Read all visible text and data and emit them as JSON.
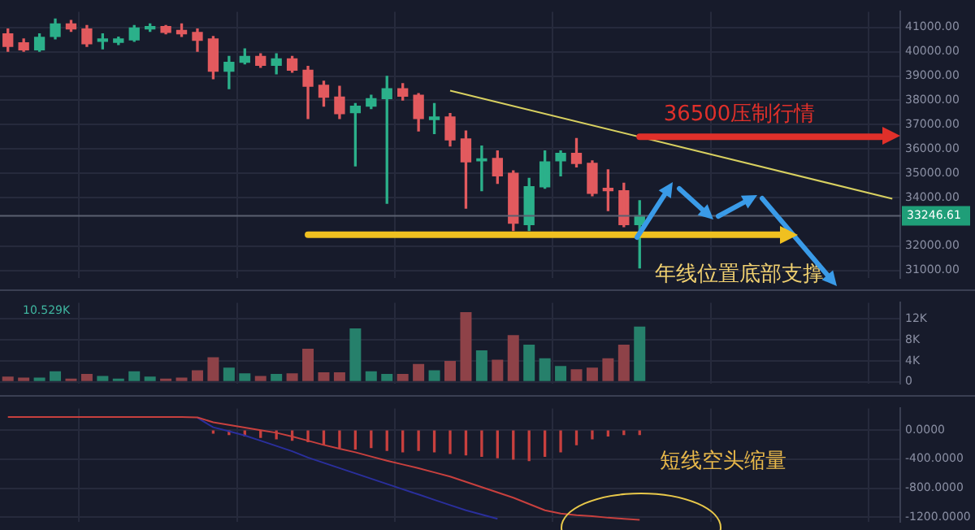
{
  "chart_data": [
    {
      "type": "candlestick",
      "categories": [
        null,
        null,
        null,
        null,
        null,
        null,
        null,
        null,
        null,
        null,
        null,
        null,
        null,
        null,
        null,
        null,
        null,
        null,
        null,
        null,
        null,
        null,
        null,
        null,
        null,
        null,
        null,
        null,
        null,
        null,
        null,
        null,
        null,
        null,
        null,
        null,
        null,
        null,
        null,
        null,
        null,
        null,
        null,
        null,
        null,
        null,
        null,
        null,
        null,
        null,
        null,
        null,
        null,
        null,
        null,
        null,
        null
      ],
      "ohlc": [
        [
          40736,
          40940,
          40018,
          40223
        ],
        [
          40367,
          40530,
          40018,
          40080
        ],
        [
          40080,
          40736,
          40018,
          40592
        ],
        [
          40633,
          41350,
          40530,
          41145
        ],
        [
          41145,
          41290,
          40838,
          40940
        ],
        [
          40940,
          41084,
          40223,
          40326
        ],
        [
          40428,
          40736,
          40120,
          40530
        ],
        [
          40387,
          40600,
          40300,
          40530
        ],
        [
          40490,
          41084,
          40428,
          40981
        ],
        [
          40940,
          41145,
          40838,
          41043
        ],
        [
          41043,
          41084,
          40736,
          40797
        ],
        [
          40879,
          41145,
          40633,
          40736
        ],
        [
          40797,
          40940,
          40018,
          40469
        ],
        [
          40530,
          40633,
          38890,
          39198
        ],
        [
          39198,
          39813,
          38480,
          39567
        ],
        [
          39567,
          40120,
          39505,
          39813
        ],
        [
          39813,
          39915,
          39362,
          39444
        ],
        [
          39444,
          39915,
          39096,
          39710
        ],
        [
          39710,
          39813,
          39157,
          39239
        ],
        [
          39239,
          39403,
          37250,
          38583
        ],
        [
          38624,
          38788,
          37763,
          38132
        ],
        [
          38132,
          38583,
          37250,
          37455
        ],
        [
          37496,
          37865,
          35303,
          37763
        ],
        [
          37763,
          38214,
          37660,
          38070
        ],
        [
          38070,
          38993,
          33765,
          38480
        ],
        [
          38480,
          38685,
          38009,
          38173
        ],
        [
          38214,
          38275,
          36738,
          37250
        ],
        [
          37209,
          37865,
          36635,
          37312
        ],
        [
          37312,
          37455,
          36123,
          36369
        ],
        [
          36410,
          36738,
          33560,
          35467
        ],
        [
          35508,
          36123,
          34278,
          35590
        ],
        [
          35610,
          35918,
          34585,
          34893
        ],
        [
          34995,
          35098,
          32638,
          32945
        ],
        [
          32884,
          34790,
          32638,
          34442
        ],
        [
          34442,
          35918,
          34380,
          35467
        ],
        [
          35508,
          35918,
          34893,
          35815
        ],
        [
          35815,
          36430,
          35262,
          35405
        ],
        [
          35405,
          35508,
          34073,
          34175
        ],
        [
          34380,
          35139,
          33458,
          34278
        ],
        [
          34278,
          34585,
          32802,
          32884
        ],
        [
          32884,
          33868,
          31100,
          33246.61
        ],
        null,
        null,
        null,
        null,
        null,
        null,
        null,
        null,
        null,
        null,
        null,
        null,
        null,
        null,
        null,
        null
      ],
      "series": [
        {
          "type": "line",
          "color": "#d8d060",
          "values": [
            null,
            null,
            null,
            null,
            null,
            null,
            null,
            null,
            null,
            null,
            null,
            null,
            null,
            null,
            null,
            null,
            null,
            null,
            null,
            null,
            null,
            null,
            null,
            null,
            null,
            null,
            null,
            null,
            38400,
            null,
            null,
            null,
            null,
            null,
            null,
            null,
            null,
            null,
            null,
            null,
            null,
            null,
            null,
            null,
            null,
            null,
            null,
            null,
            null,
            null,
            null,
            null,
            null,
            null,
            null,
            null,
            33950
          ]
        }
      ],
      "ylim": [
        30700,
        41650
      ],
      "yticks": [
        {
          "value": 31000,
          "label": "31000.00"
        },
        {
          "value": 32000,
          "label": "32000.00"
        },
        {
          "value": 34000,
          "label": "34000.00"
        },
        {
          "value": 35000,
          "label": "35000.00"
        },
        {
          "value": 36000,
          "label": "36000.00"
        },
        {
          "value": 37000,
          "label": "37000.00"
        },
        {
          "value": 38000,
          "label": "38000.00"
        },
        {
          "value": 39000,
          "label": "39000.00"
        },
        {
          "value": 40000,
          "label": "40000.00"
        },
        {
          "value": 41000,
          "label": "41000.00"
        }
      ],
      "ref_lines": [
        {
          "axis": "y",
          "value": 36500,
          "label": "36500压制行情",
          "color": "#e0302a"
        },
        {
          "axis": "y",
          "value": 32470,
          "label": "年线位置底部支撑",
          "color": "#f0c020"
        },
        {
          "axis": "y",
          "value": 33246.61,
          "label": "33246.61",
          "color": "#5a6070"
        }
      ],
      "grid": true,
      "tick_labels": "y"
    },
    {
      "type": "bar",
      "categories": [
        null,
        null,
        null,
        null,
        null,
        null,
        null,
        null,
        null,
        null,
        null,
        null,
        null,
        null,
        null,
        null,
        null,
        null,
        null,
        null,
        null,
        null,
        null,
        null,
        null,
        null,
        null,
        null,
        null,
        null,
        null,
        null,
        null,
        null,
        null,
        null,
        null,
        null,
        null,
        null,
        null,
        null,
        null,
        null,
        null,
        null,
        null,
        null,
        null,
        null,
        null,
        null,
        null,
        null,
        null,
        null,
        null
      ],
      "values": [
        1.0,
        0.8,
        0.8,
        2.0,
        0.6,
        1.5,
        1.1,
        0.6,
        2.0,
        1.0,
        0.6,
        0.8,
        2.2,
        4.7,
        2.7,
        1.6,
        1.1,
        1.5,
        1.6,
        6.3,
        1.8,
        1.8,
        10.2,
        2.0,
        1.5,
        1.5,
        3.4,
        2.2,
        4.0,
        13.3,
        6.0,
        4.2,
        8.9,
        7.1,
        4.5,
        3.0,
        2.4,
        2.7,
        4.5,
        7.1,
        10.529,
        null,
        null,
        null,
        null,
        null,
        null,
        null,
        null,
        null,
        null,
        null,
        null,
        null,
        null,
        null,
        null
      ],
      "colors": [
        "#8e4248",
        "#8e4248",
        "#26806b",
        "#26806b",
        "#8e4248",
        "#8e4248",
        "#26806b",
        "#26806b",
        "#26806b",
        "#26806b",
        "#8e4248",
        "#8e4248",
        "#8e4248",
        "#8e4248",
        "#26806b",
        "#26806b",
        "#8e4248",
        "#26806b",
        "#8e4248",
        "#8e4248",
        "#8e4248",
        "#8e4248",
        "#26806b",
        "#26806b",
        "#26806b",
        "#8e4248",
        "#8e4248",
        "#26806b",
        "#8e4248",
        "#8e4248",
        "#26806b",
        "#8e4248",
        "#8e4248",
        "#26806b",
        "#26806b",
        "#26806b",
        "#8e4248",
        "#8e4248",
        "#8e4248",
        "#8e4248",
        "#26806b",
        null,
        null,
        null,
        null,
        null,
        null,
        null,
        null,
        null,
        null,
        null,
        null,
        null,
        null,
        null,
        null
      ],
      "ylim": [
        -0.3,
        15.1
      ],
      "yticks": [
        0,
        {
          "value": 4,
          "label": "4K"
        },
        {
          "value": 8,
          "label": "8K"
        },
        {
          "value": 12,
          "label": "12K"
        }
      ],
      "annotations": [
        "10.529K"
      ],
      "grid": true,
      "tick_labels": "y"
    },
    {
      "type": "line",
      "categories": [
        null,
        null,
        null,
        null,
        null,
        null,
        null,
        null,
        null,
        null,
        null,
        null,
        null,
        null,
        null,
        null,
        null,
        null,
        null,
        null,
        null,
        null,
        null,
        null,
        null,
        null,
        null,
        null,
        null,
        null,
        null,
        null,
        null,
        null,
        null,
        null,
        null,
        null,
        null,
        null,
        null,
        null,
        null,
        null,
        null,
        null,
        null,
        null,
        null,
        null,
        null,
        null,
        null,
        null,
        null,
        null,
        null
      ],
      "series": [
        {
          "color": "#c8403e",
          "values": [
            180,
            180,
            180,
            180,
            180,
            180,
            180,
            180,
            180,
            180,
            180,
            180,
            175,
            109,
            73,
            36,
            0,
            -36,
            -87,
            -145,
            -204,
            -255,
            -305,
            -364,
            -422,
            -473,
            -524,
            -582,
            -640,
            -713,
            -785,
            -858,
            -931,
            -1018,
            -1105,
            -1149,
            -1171,
            -1185,
            -1207,
            -1222,
            -1236,
            null,
            null,
            null,
            null,
            null,
            null,
            null,
            null,
            null,
            null,
            null,
            null,
            null,
            null,
            null,
            null
          ]
        },
        {
          "color": "#2a2f9c",
          "values": [
            null,
            null,
            null,
            null,
            null,
            null,
            null,
            null,
            null,
            null,
            null,
            null,
            170,
            40,
            -15,
            -73,
            -145,
            -218,
            -291,
            -378,
            -451,
            -524,
            -596,
            -669,
            -742,
            -815,
            -887,
            -960,
            -1033,
            -1105,
            -1164,
            -1222,
            null,
            null,
            null,
            null,
            null,
            null,
            null,
            null,
            null,
            null,
            null,
            null,
            null,
            null,
            null,
            null,
            null,
            null,
            null,
            null,
            null,
            null,
            null,
            null,
            null
          ]
        },
        {
          "type": "bar",
          "color": "#c8403e",
          "values": [
            null,
            null,
            null,
            null,
            null,
            null,
            null,
            null,
            null,
            null,
            null,
            null,
            null,
            -40,
            -60,
            -80,
            -100,
            -120,
            -140,
            -160,
            -200,
            -240,
            -260,
            -240,
            -280,
            -300,
            -280,
            -300,
            -320,
            -340,
            -360,
            -380,
            -400,
            -420,
            -360,
            -300,
            -200,
            -120,
            -80,
            -60,
            -60,
            null,
            null,
            null,
            null,
            null,
            null,
            null,
            null,
            null,
            null,
            null,
            null,
            null,
            null,
            null,
            null
          ]
        }
      ],
      "ylim": [
        -1260,
        300
      ],
      "yticks": [
        {
          "value": 0,
          "label": "0.0000"
        },
        {
          "value": -400,
          "label": "-400.0000"
        },
        {
          "value": -800,
          "label": "-800.0000"
        },
        {
          "value": -1200,
          "label": "-1200.0000"
        }
      ],
      "annotations": [
        "短线空头缩量"
      ],
      "marker": "none",
      "grid": true,
      "tick_labels": "y"
    }
  ]
}
